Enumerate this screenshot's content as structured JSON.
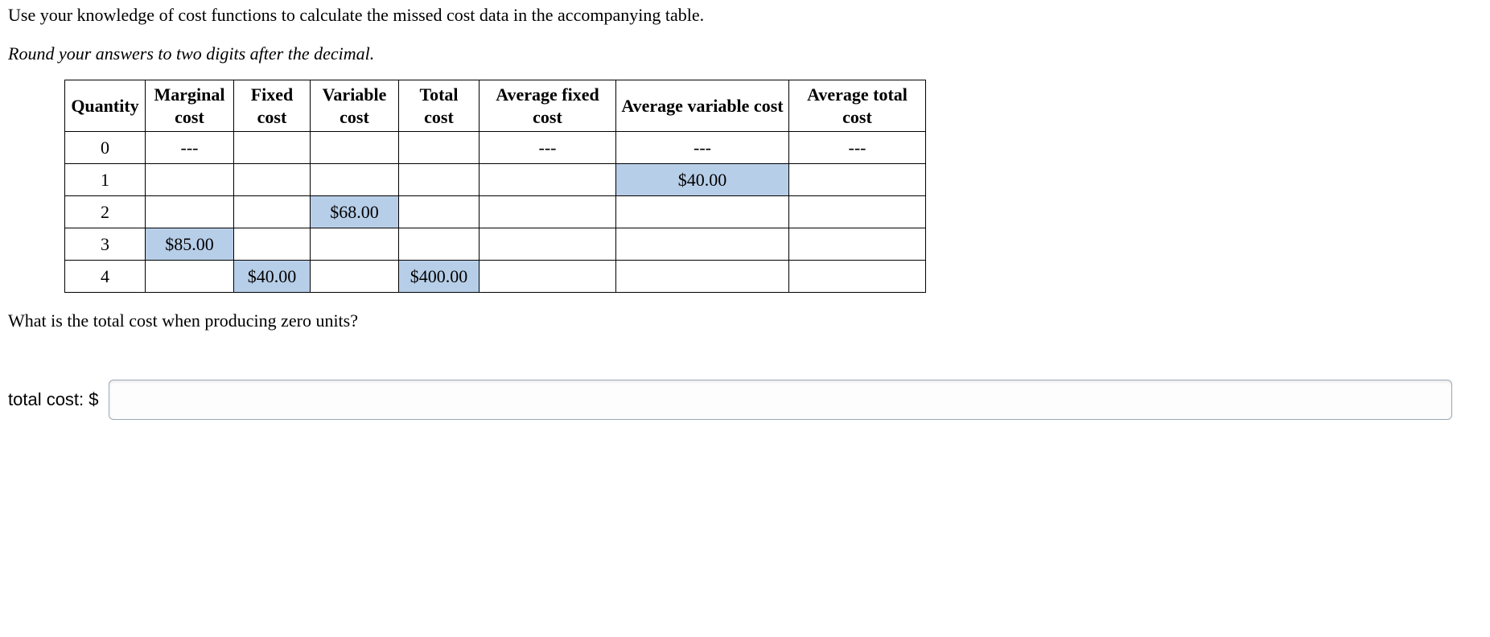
{
  "intro_line1": "Use your knowledge of cost functions to calculate the missed cost data in the accompanying table.",
  "intro_line2": "Round your answers to two digits after the decimal.",
  "table": {
    "headers": {
      "quantity": "Quantity",
      "marginal": "Marginal cost",
      "fixed": "Fixed cost",
      "variable": "Variable cost",
      "total": "Total cost",
      "afc": "Average fixed cost",
      "avc": "Average variable cost",
      "atc": "Average total cost"
    },
    "col_widths": {
      "q": 100,
      "mc": 110,
      "fc": 95,
      "vc": 110,
      "tc": 100,
      "afc": 170,
      "avc": 215,
      "atc": 170
    },
    "rows": [
      {
        "q": "0",
        "mc": "---",
        "fc": "",
        "vc": "",
        "tc": "",
        "afc": "---",
        "avc": "---",
        "atc": "---",
        "hl": {}
      },
      {
        "q": "1",
        "mc": "",
        "fc": "",
        "vc": "",
        "tc": "",
        "afc": "",
        "avc": "$40.00",
        "atc": "",
        "hl": {
          "avc": true
        }
      },
      {
        "q": "2",
        "mc": "",
        "fc": "",
        "vc": "$68.00",
        "tc": "",
        "afc": "",
        "avc": "",
        "atc": "",
        "hl": {
          "vc": true
        }
      },
      {
        "q": "3",
        "mc": "$85.00",
        "fc": "",
        "vc": "",
        "tc": "",
        "afc": "",
        "avc": "",
        "atc": "",
        "hl": {
          "mc": true
        }
      },
      {
        "q": "4",
        "mc": "",
        "fc": "$40.00",
        "vc": "",
        "tc": "$400.00",
        "afc": "",
        "avc": "",
        "atc": "",
        "hl": {
          "fc": true,
          "tc": true
        }
      }
    ],
    "highlight_color": "#b7cee8",
    "border_color": "#000000"
  },
  "question_text": "What is the total cost when producing zero units?",
  "answer_label": "total cost: $",
  "answer_value": ""
}
